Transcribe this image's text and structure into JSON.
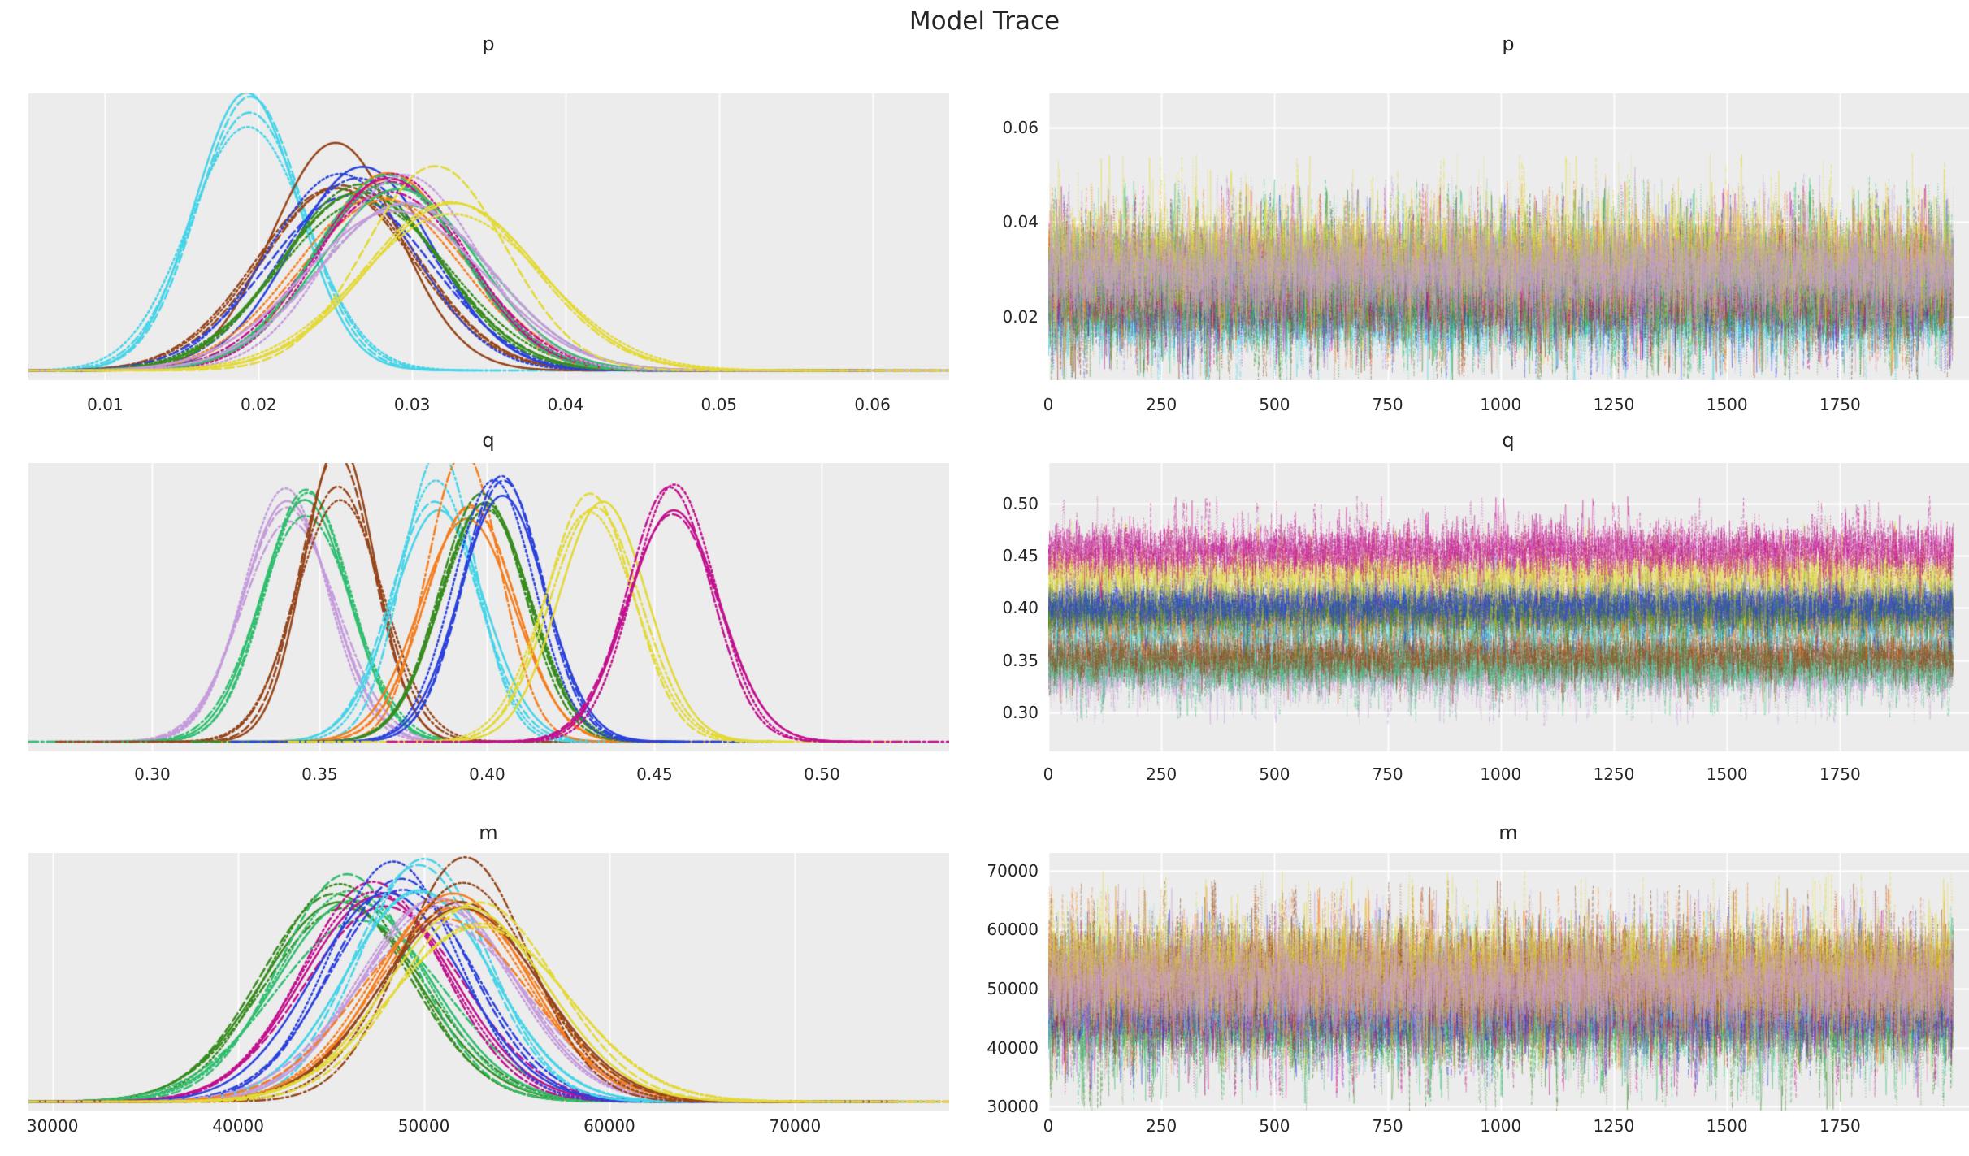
{
  "figure": {
    "title": "Model Trace",
    "background": "#ffffff",
    "panel_background": "#ececec",
    "grid_color": "#ffffff",
    "tick_label_color": "#262626",
    "n_chains_per_group": 4,
    "line_styles": [
      "solid",
      "dashed",
      "dashdot",
      "dotted"
    ]
  },
  "rows": [
    {
      "var": "p",
      "title": "p"
    },
    {
      "var": "q",
      "title": "q"
    },
    {
      "var": "m",
      "title": "m"
    }
  ],
  "palette": {
    "cyan": "#45d4e8",
    "sienna": "#96451a",
    "royal-blue": "#2b41dc",
    "forest-green": "#378c1f",
    "orange": "#f57e1e",
    "magenta": "#c2108e",
    "sea-green": "#30be70",
    "plum": "#c59bdc",
    "yellow": "#e3d935"
  },
  "chart_data": [
    {
      "id": "p-density",
      "variable": "p",
      "panel": "left",
      "type": "line",
      "kind": "kde",
      "title": "p",
      "grid": "vertical",
      "legend": false,
      "xlim": [
        0.005,
        0.065
      ],
      "x_ticks": {
        "values": [
          0.01,
          0.02,
          0.03,
          0.04,
          0.05,
          0.06
        ],
        "labels": [
          "0.01",
          "0.02",
          "0.03",
          "0.04",
          "0.05",
          "0.06"
        ]
      },
      "series": [
        {
          "name": "cyan",
          "color": "#45d4e8",
          "mean": 0.0195,
          "sd": 0.0036
        },
        {
          "name": "sienna",
          "color": "#96451a",
          "mean": 0.0252,
          "sd": 0.0047
        },
        {
          "name": "royal-blue",
          "color": "#2b41dc",
          "mean": 0.0262,
          "sd": 0.0049
        },
        {
          "name": "forest-green",
          "color": "#378c1f",
          "mean": 0.0267,
          "sd": 0.0051
        },
        {
          "name": "orange",
          "color": "#f57e1e",
          "mean": 0.0283,
          "sd": 0.0051
        },
        {
          "name": "magenta",
          "color": "#c2108e",
          "mean": 0.0285,
          "sd": 0.005
        },
        {
          "name": "sea-green",
          "color": "#30be70",
          "mean": 0.0288,
          "sd": 0.0052
        },
        {
          "name": "plum",
          "color": "#c59bdc",
          "mean": 0.0292,
          "sd": 0.0053
        },
        {
          "name": "yellow",
          "color": "#e3d935",
          "mean": 0.0323,
          "sd": 0.0056
        }
      ]
    },
    {
      "id": "p-trace",
      "variable": "p",
      "panel": "right",
      "type": "line",
      "kind": "trace",
      "title": "p",
      "grid": "both",
      "legend": false,
      "n_draws": 2000,
      "alpha": 0.4,
      "xlim": [
        0,
        2035
      ],
      "x_ticks": {
        "values": [
          0,
          250,
          500,
          750,
          1000,
          1250,
          1500,
          1750
        ],
        "labels": [
          "0",
          "250",
          "500",
          "750",
          "1000",
          "1250",
          "1500",
          "1750"
        ]
      },
      "ylim": [
        0.0066,
        0.0672
      ],
      "y_ticks": {
        "values": [
          0.02,
          0.04,
          0.06
        ],
        "labels": [
          "0.02",
          "0.04",
          "0.06"
        ]
      },
      "series": [
        {
          "name": "cyan",
          "color": "#45d4e8",
          "mean": 0.0195,
          "sd": 0.0036
        },
        {
          "name": "sienna",
          "color": "#96451a",
          "mean": 0.0252,
          "sd": 0.0047
        },
        {
          "name": "royal-blue",
          "color": "#2b41dc",
          "mean": 0.0262,
          "sd": 0.0049
        },
        {
          "name": "forest-green",
          "color": "#378c1f",
          "mean": 0.0267,
          "sd": 0.0051
        },
        {
          "name": "orange",
          "color": "#f57e1e",
          "mean": 0.0283,
          "sd": 0.0051
        },
        {
          "name": "magenta",
          "color": "#c2108e",
          "mean": 0.0285,
          "sd": 0.005
        },
        {
          "name": "sea-green",
          "color": "#30be70",
          "mean": 0.0288,
          "sd": 0.0052
        },
        {
          "name": "yellow",
          "color": "#e3d935",
          "mean": 0.0323,
          "sd": 0.0056
        },
        {
          "name": "plum",
          "color": "#c59bdc",
          "mean": 0.0292,
          "sd": 0.0053
        }
      ]
    },
    {
      "id": "q-density",
      "variable": "q",
      "panel": "left",
      "type": "line",
      "kind": "kde",
      "title": "q",
      "grid": "vertical",
      "legend": false,
      "xlim": [
        0.263,
        0.538
      ],
      "x_ticks": {
        "values": [
          0.3,
          0.35,
          0.4,
          0.45,
          0.5
        ],
        "labels": [
          "0.30",
          "0.35",
          "0.40",
          "0.45",
          "0.50"
        ]
      },
      "series": [
        {
          "name": "plum",
          "color": "#c59bdc",
          "mean": 0.34,
          "sd": 0.0133
        },
        {
          "name": "sea-green",
          "color": "#30be70",
          "mean": 0.346,
          "sd": 0.013
        },
        {
          "name": "sienna",
          "color": "#96451a",
          "mean": 0.356,
          "sd": 0.0122
        },
        {
          "name": "cyan",
          "color": "#45d4e8",
          "mean": 0.385,
          "sd": 0.0121
        },
        {
          "name": "orange",
          "color": "#f57e1e",
          "mean": 0.394,
          "sd": 0.0128
        },
        {
          "name": "forest-green",
          "color": "#378c1f",
          "mean": 0.399,
          "sd": 0.0128
        },
        {
          "name": "royal-blue",
          "color": "#2b41dc",
          "mean": 0.404,
          "sd": 0.0122
        },
        {
          "name": "yellow",
          "color": "#e3d935",
          "mean": 0.432,
          "sd": 0.013
        },
        {
          "name": "magenta",
          "color": "#c2108e",
          "mean": 0.455,
          "sd": 0.0131
        }
      ]
    },
    {
      "id": "q-trace",
      "variable": "q",
      "panel": "right",
      "type": "line",
      "kind": "trace",
      "title": "q",
      "grid": "both",
      "legend": false,
      "n_draws": 2000,
      "alpha": 0.4,
      "xlim": [
        0,
        2035
      ],
      "x_ticks": {
        "values": [
          0,
          250,
          500,
          750,
          1000,
          1250,
          1500,
          1750
        ],
        "labels": [
          "0",
          "250",
          "500",
          "750",
          "1000",
          "1250",
          "1500",
          "1750"
        ]
      },
      "ylim": [
        0.2626,
        0.5389
      ],
      "y_ticks": {
        "values": [
          0.3,
          0.35,
          0.4,
          0.45,
          0.5
        ],
        "labels": [
          "0.30",
          "0.35",
          "0.40",
          "0.45",
          "0.50"
        ]
      },
      "series": [
        {
          "name": "plum",
          "color": "#c59bdc",
          "mean": 0.34,
          "sd": 0.0133
        },
        {
          "name": "sea-green",
          "color": "#30be70",
          "mean": 0.346,
          "sd": 0.013
        },
        {
          "name": "sienna",
          "color": "#96451a",
          "mean": 0.356,
          "sd": 0.0122
        },
        {
          "name": "cyan",
          "color": "#45d4e8",
          "mean": 0.385,
          "sd": 0.0121
        },
        {
          "name": "orange",
          "color": "#f57e1e",
          "mean": 0.394,
          "sd": 0.0128
        },
        {
          "name": "forest-green",
          "color": "#378c1f",
          "mean": 0.399,
          "sd": 0.0128
        },
        {
          "name": "royal-blue",
          "color": "#2b41dc",
          "mean": 0.404,
          "sd": 0.0122
        },
        {
          "name": "yellow",
          "color": "#e3d935",
          "mean": 0.432,
          "sd": 0.013
        },
        {
          "name": "magenta",
          "color": "#c2108e",
          "mean": 0.455,
          "sd": 0.0131
        }
      ]
    },
    {
      "id": "m-density",
      "variable": "m",
      "panel": "left",
      "type": "line",
      "kind": "kde",
      "title": "m",
      "grid": "vertical",
      "legend": false,
      "xlim": [
        28700,
        78300
      ],
      "x_ticks": {
        "values": [
          30000,
          40000,
          50000,
          60000,
          70000
        ],
        "labels": [
          "30000",
          "40000",
          "50000",
          "60000",
          "70000"
        ]
      },
      "series": [
        {
          "name": "forest-green",
          "color": "#378c1f",
          "mean": 45500,
          "sd": 4100
        },
        {
          "name": "sea-green",
          "color": "#30be70",
          "mean": 46300,
          "sd": 4000
        },
        {
          "name": "magenta",
          "color": "#c2108e",
          "mean": 47400,
          "sd": 4000
        },
        {
          "name": "royal-blue",
          "color": "#2b41dc",
          "mean": 48400,
          "sd": 3900
        },
        {
          "name": "cyan",
          "color": "#45d4e8",
          "mean": 50000,
          "sd": 3600
        },
        {
          "name": "plum",
          "color": "#c59bdc",
          "mean": 50800,
          "sd": 4100
        },
        {
          "name": "orange",
          "color": "#f57e1e",
          "mean": 51400,
          "sd": 4000
        },
        {
          "name": "sienna",
          "color": "#96451a",
          "mean": 52100,
          "sd": 4100
        },
        {
          "name": "yellow",
          "color": "#e3d935",
          "mean": 52800,
          "sd": 4300
        }
      ]
    },
    {
      "id": "m-trace",
      "variable": "m",
      "panel": "right",
      "type": "line",
      "kind": "trace",
      "title": "m",
      "grid": "both",
      "legend": false,
      "n_draws": 2000,
      "alpha": 0.4,
      "xlim": [
        0,
        2035
      ],
      "x_ticks": {
        "values": [
          0,
          250,
          500,
          750,
          1000,
          1250,
          1500,
          1750
        ],
        "labels": [
          "0",
          "250",
          "500",
          "750",
          "1000",
          "1250",
          "1500",
          "1750"
        ]
      },
      "ylim": [
        29200,
        73000
      ],
      "y_ticks": {
        "values": [
          30000,
          40000,
          50000,
          60000,
          70000
        ],
        "labels": [
          "30000",
          "40000",
          "50000",
          "60000",
          "70000"
        ]
      },
      "series": [
        {
          "name": "forest-green",
          "color": "#378c1f",
          "mean": 45500,
          "sd": 4100
        },
        {
          "name": "sea-green",
          "color": "#30be70",
          "mean": 46300,
          "sd": 4000
        },
        {
          "name": "magenta",
          "color": "#c2108e",
          "mean": 47400,
          "sd": 4000
        },
        {
          "name": "royal-blue",
          "color": "#2b41dc",
          "mean": 48400,
          "sd": 3900
        },
        {
          "name": "cyan",
          "color": "#45d4e8",
          "mean": 50000,
          "sd": 3600
        },
        {
          "name": "orange",
          "color": "#f57e1e",
          "mean": 51400,
          "sd": 4000
        },
        {
          "name": "sienna",
          "color": "#96451a",
          "mean": 52100,
          "sd": 4100
        },
        {
          "name": "yellow",
          "color": "#e3d935",
          "mean": 52800,
          "sd": 4300
        },
        {
          "name": "plum",
          "color": "#c59bdc",
          "mean": 50800,
          "sd": 4100
        }
      ]
    }
  ]
}
